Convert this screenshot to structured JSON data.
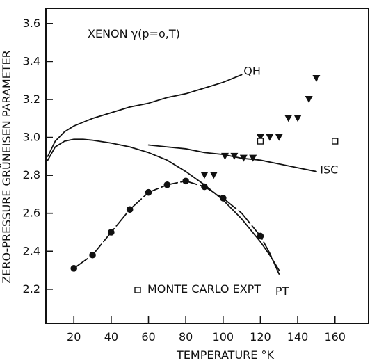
{
  "chart_data": {
    "type": "line",
    "title": "XENON γ(p=o,T)",
    "xlabel": "TEMPERATURE °K",
    "ylabel": "ZERO-PRESSURE GRÜNEISEN PARAMETER",
    "xlim": [
      5,
      178
    ],
    "ylim": [
      2.02,
      3.68
    ],
    "x_ticks": [
      20,
      40,
      60,
      80,
      100,
      120,
      140,
      160
    ],
    "x_tick_labels": [
      "20",
      "40",
      "60",
      "80",
      "100",
      "120",
      "140",
      "160"
    ],
    "y_ticks": [
      2.2,
      2.4,
      2.6,
      2.8,
      3.0,
      3.2,
      3.4,
      3.6
    ],
    "y_tick_labels": [
      "2.2",
      "2.4",
      "2.6",
      "2.8",
      "3.0",
      "3.2",
      "3.4",
      "3.6"
    ],
    "grid": false,
    "legend": "bottom-left",
    "series": [
      {
        "name": "QH",
        "type": "line",
        "x": [
          6,
          10,
          15,
          20,
          30,
          40,
          50,
          60,
          70,
          80,
          90,
          100,
          105,
          110
        ],
        "y": [
          2.9,
          2.98,
          3.03,
          3.06,
          3.1,
          3.13,
          3.16,
          3.18,
          3.21,
          3.23,
          3.26,
          3.29,
          3.31,
          3.33
        ]
      },
      {
        "name": "ISC",
        "type": "line",
        "x": [
          60,
          70,
          80,
          90,
          100,
          110,
          120,
          130,
          140,
          150
        ],
        "y": [
          2.96,
          2.95,
          2.94,
          2.92,
          2.91,
          2.89,
          2.88,
          2.86,
          2.84,
          2.82
        ]
      },
      {
        "name": "PT",
        "type": "line",
        "x": [
          6,
          10,
          15,
          20,
          25,
          30,
          40,
          50,
          60,
          70,
          80,
          90,
          100,
          110,
          120,
          125,
          130
        ],
        "y": [
          2.88,
          2.95,
          2.98,
          2.99,
          2.99,
          2.985,
          2.97,
          2.95,
          2.92,
          2.88,
          2.82,
          2.75,
          2.67,
          2.57,
          2.45,
          2.38,
          2.3
        ]
      },
      {
        "name": "PT dashed curve",
        "type": "line",
        "style": "dashed",
        "x": [
          20,
          30,
          40,
          50,
          60,
          70,
          80,
          90,
          100
        ],
        "y": [
          2.31,
          2.38,
          2.5,
          2.62,
          2.71,
          2.75,
          2.77,
          2.74,
          2.68
        ]
      },
      {
        "name": "PT extension",
        "type": "line",
        "style": "dashed",
        "x": [
          100,
          110,
          120,
          125,
          130
        ],
        "y": [
          2.68,
          2.6,
          2.48,
          2.39,
          2.28
        ]
      },
      {
        "name": "Filled circles",
        "type": "scatter",
        "marker": "circle",
        "x": [
          20,
          30,
          40,
          50,
          60,
          70,
          80,
          90,
          100,
          120
        ],
        "y": [
          2.31,
          2.38,
          2.5,
          2.62,
          2.71,
          2.75,
          2.77,
          2.74,
          2.68,
          2.48
        ]
      },
      {
        "name": "Filled triangles",
        "type": "scatter",
        "marker": "triangle",
        "x": [
          90,
          95,
          101,
          106,
          111,
          116,
          120,
          125,
          130,
          135,
          140,
          146,
          150
        ],
        "y": [
          2.8,
          2.8,
          2.9,
          2.9,
          2.89,
          2.89,
          3.0,
          3.0,
          3.0,
          3.1,
          3.1,
          3.2,
          3.31
        ]
      },
      {
        "name": "MONTE CARLO EXPT",
        "type": "scatter",
        "marker": "square-open",
        "x": [
          120,
          160
        ],
        "y": [
          2.98,
          2.98
        ]
      }
    ],
    "annotations": [
      "QH",
      "ISC",
      "PT"
    ]
  },
  "colors": {
    "ink": "#111111",
    "background": "#ffffff"
  }
}
